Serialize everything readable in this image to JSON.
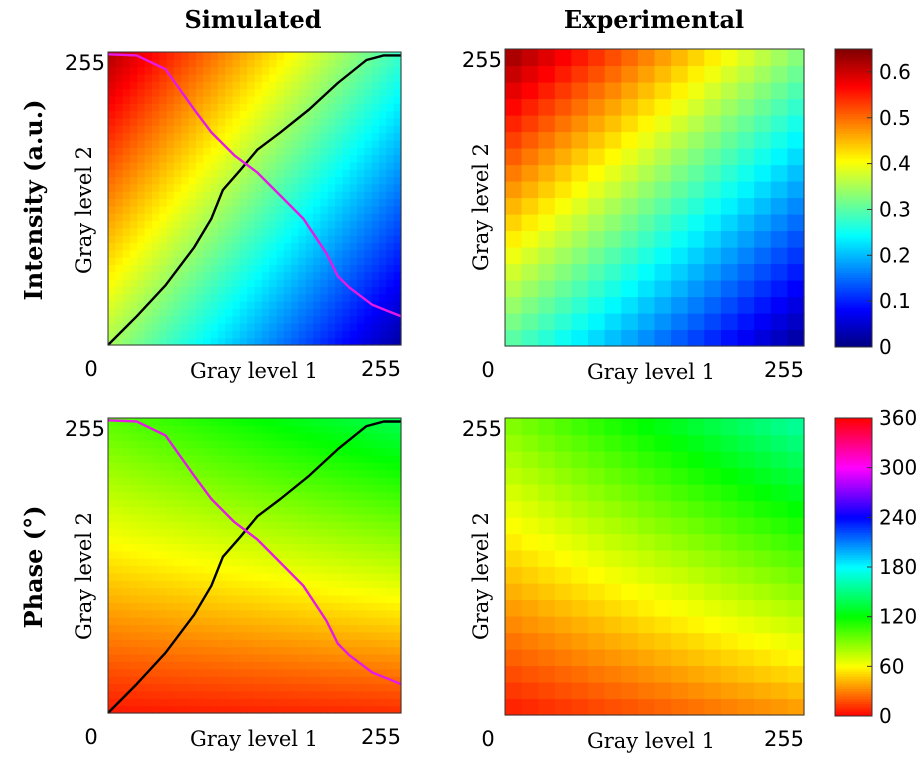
{
  "col_titles": [
    "Simulated",
    "Experimental"
  ],
  "row_titles": [
    "Intensity (a.u.)",
    "Phase (°)"
  ],
  "x_axis": {
    "label": "Gray level 1",
    "tick_min": "0",
    "tick_max": "255"
  },
  "y_axis": {
    "label": "Gray level 2",
    "tick_max": "255"
  },
  "chart_data": [
    {
      "type": "heatmap",
      "title": "Simulated",
      "row_label": "Intensity (a.u.)",
      "xlabel": "Gray level 1",
      "ylabel": "Gray level 2",
      "xlim": [
        0,
        255
      ],
      "ylim": [
        0,
        255
      ],
      "colormap": "jet",
      "clim": [
        0,
        0.65
      ],
      "grid_size": 40,
      "corners": {
        "x0_y255": 0.62,
        "x255_y255": 0.28,
        "x0_y0": 0.35,
        "x255_y0": 0.02
      },
      "series": [
        {
          "name": "",
          "color": "#000000",
          "x": [
            0,
            25,
            50,
            75,
            90,
            100,
            115,
            130,
            150,
            175,
            200,
            225,
            240,
            255
          ],
          "y": [
            0,
            25,
            52,
            85,
            110,
            135,
            152,
            170,
            185,
            205,
            228,
            248,
            252,
            252
          ]
        },
        {
          "name": "",
          "color": "#e619e6",
          "x": [
            0,
            25,
            50,
            75,
            90,
            110,
            130,
            150,
            170,
            190,
            200,
            210,
            230,
            255
          ],
          "y": [
            253,
            252,
            240,
            205,
            185,
            165,
            150,
            130,
            110,
            80,
            60,
            50,
            35,
            25
          ]
        }
      ]
    },
    {
      "type": "heatmap",
      "title": "Experimental",
      "row_label": "Intensity (a.u.)",
      "xlabel": "Gray level 1",
      "ylabel": "Gray level 2",
      "xlim": [
        0,
        255
      ],
      "ylim": [
        0,
        255
      ],
      "colormap": "jet",
      "clim": [
        0,
        0.65
      ],
      "grid_size": 18,
      "corners": {
        "x0_y255": 0.64,
        "x255_y255": 0.33,
        "x0_y0": 0.3,
        "x255_y0": 0.01
      },
      "colorbar": {
        "ticks": [
          0,
          0.1,
          0.2,
          0.3,
          0.4,
          0.5,
          0.6
        ],
        "tick_labels": [
          "0",
          "0.1",
          "0.2",
          "0.3",
          "0.4",
          "0.5",
          "0.6"
        ]
      }
    },
    {
      "type": "heatmap",
      "title": "Simulated",
      "row_label": "Phase (°)",
      "xlabel": "Gray level 1",
      "ylabel": "Gray level 2",
      "xlim": [
        0,
        255
      ],
      "ylim": [
        0,
        255
      ],
      "colormap": "hsv",
      "clim": [
        0,
        360
      ],
      "grid_size": 40,
      "corners": {
        "x0_y255": 100,
        "x255_y255": 140,
        "x0_y0": 5,
        "x255_y0": 10
      },
      "series": [
        {
          "name": "",
          "color": "#000000",
          "x": [
            0,
            25,
            50,
            75,
            90,
            100,
            115,
            130,
            150,
            175,
            200,
            225,
            240,
            255
          ],
          "y": [
            0,
            25,
            52,
            85,
            110,
            135,
            152,
            170,
            185,
            205,
            228,
            248,
            252,
            252
          ]
        },
        {
          "name": "",
          "color": "#e619e6",
          "x": [
            0,
            25,
            50,
            75,
            90,
            110,
            130,
            150,
            170,
            190,
            200,
            210,
            230,
            255
          ],
          "y": [
            253,
            252,
            240,
            205,
            185,
            165,
            150,
            130,
            110,
            80,
            60,
            50,
            35,
            25
          ]
        }
      ]
    },
    {
      "type": "heatmap",
      "title": "Experimental",
      "row_label": "Phase (°)",
      "xlabel": "Gray level 1",
      "ylabel": "Gray level 2",
      "xlim": [
        0,
        255
      ],
      "ylim": [
        0,
        255
      ],
      "colormap": "hsv",
      "clim": [
        0,
        360
      ],
      "grid_size": 18,
      "corners": {
        "x0_y255": 90,
        "x255_y255": 160,
        "x0_y0": 5,
        "x255_y0": 35
      },
      "colorbar": {
        "ticks": [
          0,
          60,
          120,
          180,
          240,
          300,
          360
        ],
        "tick_labels": [
          "0",
          "60",
          "120",
          "180",
          "240",
          "300",
          "360"
        ]
      }
    }
  ]
}
